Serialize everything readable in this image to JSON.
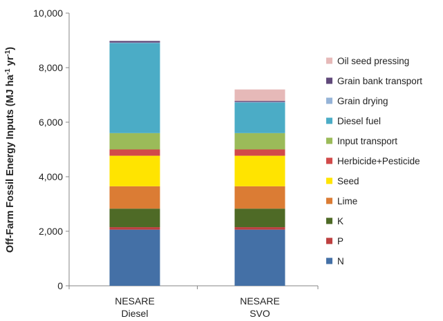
{
  "chart_data": {
    "type": "bar",
    "stacked": true,
    "categories": [
      [
        "NESARE",
        "Diesel"
      ],
      [
        "NESARE",
        "SVO"
      ]
    ],
    "ylabel": {
      "main": "Off-Farm Fossil Energy Inputs (MJ ha",
      "sup1": "-1",
      "mid": " yr",
      "sup2": "-1",
      "end": ")"
    },
    "ylim": [
      0,
      10000
    ],
    "yticks": [
      0,
      2000,
      4000,
      6000,
      8000,
      10000
    ],
    "ytick_labels": [
      "0",
      "2,000",
      "4,000",
      "6,000",
      "8,000",
      "10,000"
    ],
    "grid": false,
    "legend_position": "right",
    "series": [
      {
        "name": "N",
        "color": "#4470a6",
        "values": [
          2060,
          2060
        ]
      },
      {
        "name": "P",
        "color": "#bd4040",
        "values": [
          90,
          90
        ]
      },
      {
        "name": "K",
        "color": "#4e6a26",
        "values": [
          680,
          680
        ]
      },
      {
        "name": "Lime",
        "color": "#db7c34",
        "values": [
          820,
          820
        ]
      },
      {
        "name": "Seed",
        "color": "#ffe400",
        "values": [
          1120,
          1120
        ]
      },
      {
        "name": "Herbicide+Pesticide",
        "color": "#d14a4a",
        "values": [
          230,
          230
        ]
      },
      {
        "name": "Input transport",
        "color": "#9bbb59",
        "values": [
          600,
          600
        ]
      },
      {
        "name": "Diesel fuel",
        "color": "#4bacc6",
        "values": [
          3300,
          1120
        ]
      },
      {
        "name": "Grain drying",
        "color": "#95b3d7",
        "values": [
          20,
          20
        ]
      },
      {
        "name": "Grain bank transport",
        "color": "#60497a",
        "values": [
          60,
          40
        ]
      },
      {
        "name": "Oil seed pressing",
        "color": "#e6b9b8",
        "values": [
          0,
          420
        ]
      }
    ]
  }
}
